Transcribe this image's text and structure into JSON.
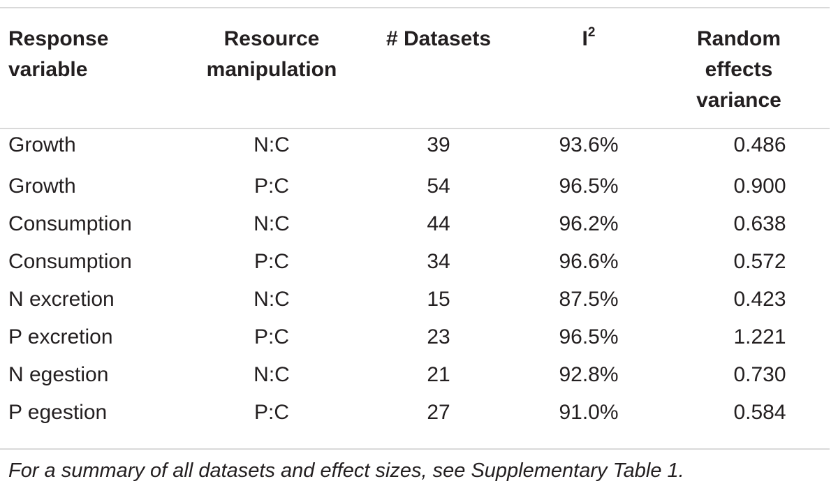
{
  "table": {
    "headers": {
      "response_line1": "Response",
      "response_line2": "variable",
      "resource_line1": "Resource",
      "resource_line2": "manipulation",
      "datasets": "# Datasets",
      "i2_base": "I",
      "i2_sup": "2",
      "rev_line1": "Random",
      "rev_line2": "effects",
      "rev_line3": "variance"
    },
    "rows": [
      {
        "response": "Growth",
        "manipulation": "N:C",
        "datasets": "39",
        "i2": "93.6%",
        "variance": "0.486"
      },
      {
        "response": "Growth",
        "manipulation": "P:C",
        "datasets": "54",
        "i2": "96.5%",
        "variance": "0.900"
      },
      {
        "response": "Consumption",
        "manipulation": "N:C",
        "datasets": "44",
        "i2": "96.2%",
        "variance": "0.638"
      },
      {
        "response": "Consumption",
        "manipulation": "P:C",
        "datasets": "34",
        "i2": "96.6%",
        "variance": "0.572"
      },
      {
        "response": "N excretion",
        "manipulation": "N:C",
        "datasets": "15",
        "i2": "87.5%",
        "variance": "0.423"
      },
      {
        "response": "P excretion",
        "manipulation": "P:C",
        "datasets": "23",
        "i2": "96.5%",
        "variance": "1.221"
      },
      {
        "response": "N egestion",
        "manipulation": "N:C",
        "datasets": "21",
        "i2": "92.8%",
        "variance": "0.730"
      },
      {
        "response": "P egestion",
        "manipulation": "P:C",
        "datasets": "27",
        "i2": "91.0%",
        "variance": "0.584"
      }
    ]
  },
  "footnote": "For a summary of all datasets and effect sizes, see Supplementary Table 1."
}
